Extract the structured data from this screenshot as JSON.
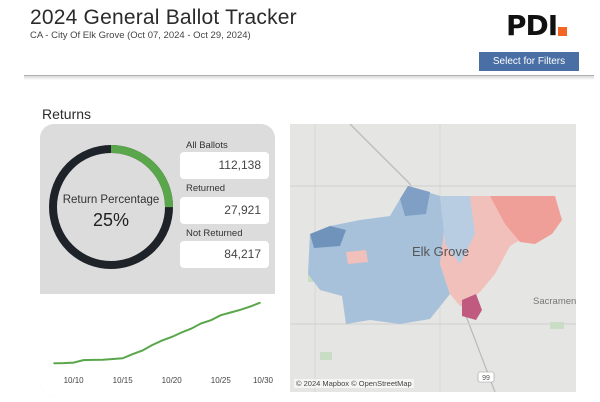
{
  "header": {
    "title": "2024 General Ballot Tracker",
    "subtitle": "CA - City Of Elk Grove (Oct 07, 2024 - Oct 29, 2024)",
    "logo_text": "PDI",
    "logo_dot_color": "#f26522"
  },
  "filters": {
    "button_label": "Select for Filters"
  },
  "returns": {
    "section_title": "Returns",
    "gauge": {
      "label": "Return Percentage",
      "value": "25%",
      "fraction": 0.25,
      "fill_color": "#5aa64a",
      "track_color": "#1d2329"
    },
    "stats": [
      {
        "label": "All Ballots",
        "value": "112,138"
      },
      {
        "label": "Returned",
        "value": "27,921"
      },
      {
        "label": "Not Returned",
        "value": "84,217"
      }
    ]
  },
  "chart_data": {
    "type": "line",
    "x_ticks": [
      "10/10",
      "10/15",
      "10/20",
      "10/25",
      "10/30"
    ],
    "x": [
      "10/08",
      "10/09",
      "10/10",
      "10/11",
      "10/12",
      "10/13",
      "10/14",
      "10/15",
      "10/16",
      "10/17",
      "10/18",
      "10/19",
      "10/20",
      "10/21",
      "10/22",
      "10/23",
      "10/24",
      "10/25",
      "10/26",
      "10/27",
      "10/28",
      "10/29"
    ],
    "series": [
      {
        "values": [
          1200,
          1300,
          1500,
          2600,
          2700,
          2800,
          3100,
          3400,
          5200,
          6800,
          9200,
          11200,
          12800,
          14800,
          16500,
          18800,
          20200,
          22400,
          23600,
          24800,
          26200,
          27921
        ],
        "color": "#5aa64a"
      }
    ],
    "ylim": [
      0,
      30000
    ]
  },
  "map": {
    "city_label": "Elk Grove",
    "nearby_label": "Sacramen",
    "highway_label": "99",
    "attribution": "© 2024 Mapbox © OpenStreetMap"
  }
}
